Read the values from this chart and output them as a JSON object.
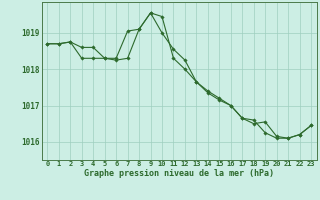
{
  "line1_x": [
    0,
    1,
    2,
    3,
    4,
    5,
    6,
    7,
    8,
    9,
    10,
    11,
    12,
    13,
    14,
    15,
    16,
    17,
    18,
    19,
    20,
    21,
    22,
    23
  ],
  "line1_y": [
    1018.7,
    1018.7,
    1018.75,
    1018.6,
    1018.6,
    1018.3,
    1018.3,
    1019.05,
    1019.1,
    1019.55,
    1019.0,
    1018.55,
    1018.25,
    1017.65,
    1017.4,
    1017.2,
    1017.0,
    1016.65,
    1016.6,
    1016.25,
    1016.1,
    1016.1,
    1016.2,
    1016.45
  ],
  "line2_x": [
    0,
    1,
    2,
    3,
    4,
    5,
    6,
    7,
    8,
    9,
    10,
    11,
    12,
    13,
    14,
    15,
    16,
    17,
    18,
    19,
    20,
    21,
    22,
    23
  ],
  "line2_y": [
    1018.7,
    1018.7,
    1018.75,
    1018.3,
    1018.3,
    1018.3,
    1018.25,
    1018.3,
    1019.1,
    1019.55,
    1019.45,
    1018.3,
    1018.0,
    1017.65,
    1017.35,
    1017.15,
    1017.0,
    1016.65,
    1016.5,
    1016.55,
    1016.15,
    1016.1,
    1016.2,
    1016.45
  ],
  "line_color": "#2d6a2d",
  "bg_color": "#cceee4",
  "grid_color": "#9fcfbf",
  "xlabel": "Graphe pression niveau de la mer (hPa)",
  "ylabel_ticks": [
    1016,
    1017,
    1018,
    1019
  ],
  "xlim": [
    -0.5,
    23.5
  ],
  "ylim": [
    1015.5,
    1019.85
  ],
  "marker": "D",
  "marker_size": 1.8,
  "linewidth": 0.8,
  "border_color": "#4a7a4a",
  "tick_fontsize": 5.0,
  "xlabel_fontsize": 6.0,
  "ytick_fontsize": 5.5
}
